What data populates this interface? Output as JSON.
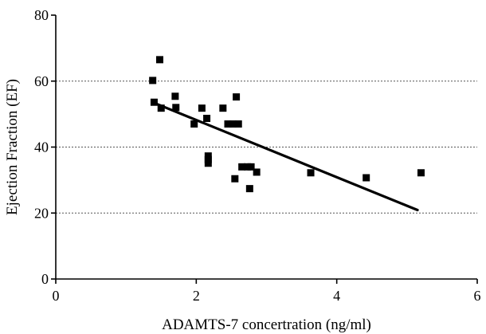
{
  "chart_data": {
    "type": "scatter",
    "title": "",
    "xlabel": "ADAMTS-7 concertration (ng/ml)",
    "ylabel": "Ejection Fraction (EF)",
    "xlim": [
      0,
      6
    ],
    "ylim": [
      0,
      80
    ],
    "x_ticks": [
      0,
      2,
      4,
      6
    ],
    "y_ticks": [
      0,
      20,
      40,
      60,
      80
    ],
    "x_tick_labels": [
      "0",
      "2",
      "4",
      "6"
    ],
    "y_tick_labels": [
      "0",
      "20",
      "40",
      "60",
      "80"
    ],
    "grid": {
      "y_dashed_at": [
        20,
        40,
        60
      ]
    },
    "legend": "none",
    "marker": "square",
    "colors": {
      "points": "#000000",
      "fit_line": "#000000",
      "grid": "#555555"
    },
    "points": [
      {
        "x": 1.38,
        "y": 60.2
      },
      {
        "x": 1.4,
        "y": 53.6
      },
      {
        "x": 1.48,
        "y": 66.5
      },
      {
        "x": 1.5,
        "y": 51.8
      },
      {
        "x": 1.7,
        "y": 55.4
      },
      {
        "x": 1.71,
        "y": 52.0
      },
      {
        "x": 1.97,
        "y": 47.0
      },
      {
        "x": 2.08,
        "y": 51.8
      },
      {
        "x": 2.15,
        "y": 48.7
      },
      {
        "x": 2.17,
        "y": 37.3
      },
      {
        "x": 2.17,
        "y": 36.2
      },
      {
        "x": 2.17,
        "y": 35.1
      },
      {
        "x": 2.38,
        "y": 51.8
      },
      {
        "x": 2.45,
        "y": 47.0
      },
      {
        "x": 2.52,
        "y": 47.0
      },
      {
        "x": 2.55,
        "y": 30.4
      },
      {
        "x": 2.57,
        "y": 55.2
      },
      {
        "x": 2.6,
        "y": 47.0
      },
      {
        "x": 2.65,
        "y": 34.0
      },
      {
        "x": 2.73,
        "y": 34.0
      },
      {
        "x": 2.76,
        "y": 27.4
      },
      {
        "x": 2.78,
        "y": 34.0
      },
      {
        "x": 2.86,
        "y": 32.4
      },
      {
        "x": 3.63,
        "y": 32.2
      },
      {
        "x": 4.42,
        "y": 30.7
      },
      {
        "x": 5.2,
        "y": 32.2
      }
    ],
    "fit_line": {
      "x": [
        1.4,
        5.15
      ],
      "y": [
        53.4,
        20.9
      ]
    }
  }
}
